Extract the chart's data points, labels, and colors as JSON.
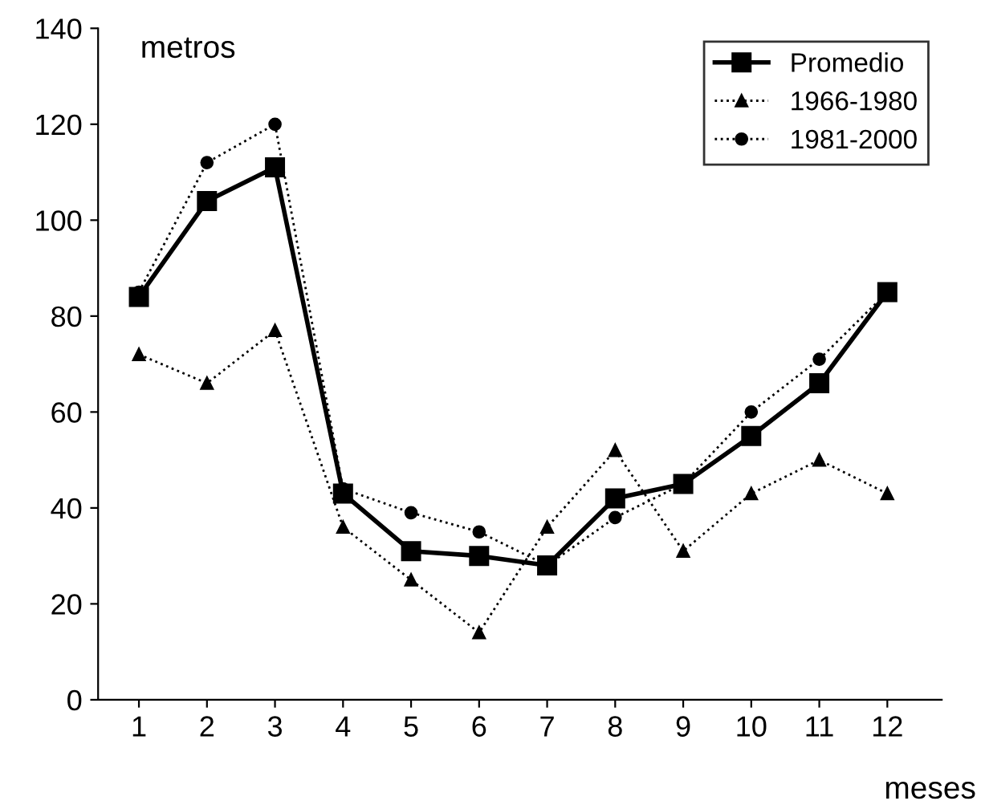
{
  "chart_data": {
    "type": "line",
    "xlabel": "meses",
    "ylabel": "metros",
    "categories": [
      "1",
      "2",
      "3",
      "4",
      "5",
      "6",
      "7",
      "8",
      "9",
      "10",
      "11",
      "12"
    ],
    "series": [
      {
        "name": "Promedio",
        "color": "#000000",
        "marker": "square",
        "line_style": "solid",
        "values": [
          84,
          104,
          111,
          43,
          31,
          30,
          28,
          42,
          45,
          55,
          66,
          85
        ]
      },
      {
        "name": "1966-1980",
        "color": "#000000",
        "marker": "triangle",
        "line_style": "dotted",
        "values": [
          72,
          66,
          77,
          36,
          25,
          14,
          36,
          52,
          31,
          43,
          50,
          43
        ]
      },
      {
        "name": "1981-2000",
        "color": "#000000",
        "marker": "circle",
        "line_style": "dotted",
        "values": [
          85,
          112,
          120,
          44,
          39,
          35,
          28,
          38,
          45,
          60,
          71,
          85
        ]
      }
    ],
    "ylim": [
      0,
      140
    ],
    "yticks": [
      0,
      20,
      40,
      60,
      80,
      100,
      120,
      140
    ],
    "grid": false,
    "legend": "top right"
  }
}
